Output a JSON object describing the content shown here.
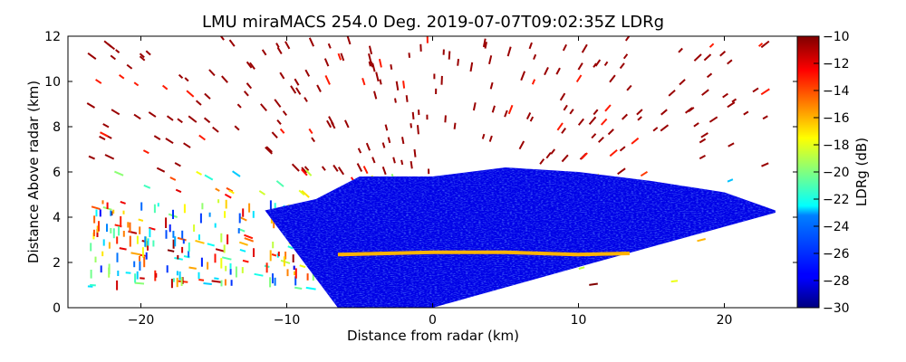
{
  "chart_data": {
    "type": "heatmap",
    "title": "LMU miraMACS 254.0 Deg. 2019-07-07T09:02:35Z  LDRg",
    "xlabel": "Distance from radar (km)",
    "ylabel": "Distance Above radar  (km)",
    "xlim": [
      -25,
      25
    ],
    "ylim": [
      0,
      12
    ],
    "x_ticks": [
      "−20",
      "−10",
      "0",
      "10",
      "20"
    ],
    "x_tick_values": [
      -20,
      -10,
      0,
      10,
      20
    ],
    "y_ticks": [
      "0",
      "2",
      "4",
      "6",
      "8",
      "10",
      "12"
    ],
    "y_tick_values": [
      0,
      2,
      4,
      6,
      8,
      10,
      12
    ],
    "colorbar": {
      "label": "LDRg (dB)",
      "range": [
        -30,
        -10
      ],
      "colormap": "jet",
      "ticks": [
        "−30",
        "−28",
        "−26",
        "−24",
        "−22",
        "−20",
        "−18",
        "−16",
        "−14",
        "−12",
        "−10"
      ],
      "tick_values": [
        -30,
        -28,
        -26,
        -24,
        -22,
        -20,
        -18,
        -16,
        -14,
        -12,
        -10
      ]
    },
    "features": {
      "main_echo": {
        "x_range_km": [
          -11.5,
          23.5
        ],
        "top_km": [
          [
            -11.5,
            4.3
          ],
          [
            -8,
            4.8
          ],
          [
            -5,
            5.8
          ],
          [
            0,
            5.8
          ],
          [
            5,
            6.2
          ],
          [
            10,
            6.0
          ],
          [
            15,
            5.6
          ],
          [
            20,
            5.1
          ],
          [
            23.5,
            4.3
          ]
        ],
        "base_km": [
          [
            -6.5,
            0.0
          ],
          [
            0,
            0.0
          ],
          [
            10,
            1.8
          ],
          [
            23.5,
            4.2
          ]
        ],
        "ldr_db": -28
      },
      "melting_layer": {
        "points_km": [
          [
            -6.5,
            2.35
          ],
          [
            0,
            2.45
          ],
          [
            5,
            2.45
          ],
          [
            10,
            2.35
          ],
          [
            13.5,
            2.4
          ]
        ],
        "ldr_db": -16
      },
      "scattered_clutter": {
        "x_range_km": [
          -23.5,
          23
        ],
        "height_range_km": [
          0.8,
          12
        ],
        "ldr_db_range": [
          -24,
          -10
        ]
      }
    }
  }
}
